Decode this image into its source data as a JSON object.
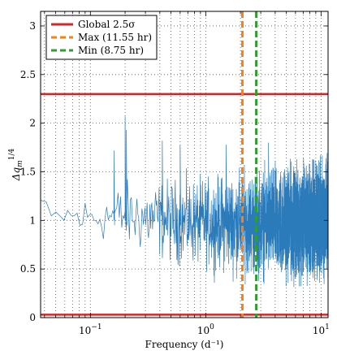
{
  "chart_data": {
    "type": "line",
    "title": "",
    "xlabel": "Frequency (d⁻¹)",
    "ylabel": "Δq",
    "ylabel_sub": "m",
    "ylabel_sup": "1/4",
    "xscale": "log",
    "xlim": [
      0.037,
      11.5
    ],
    "ylim": [
      0,
      3.15
    ],
    "grid": true,
    "legend_position": "top-left",
    "x_ticks": [
      {
        "value": 0.1,
        "base": "10",
        "exp": "−1"
      },
      {
        "value": 1,
        "base": "10",
        "exp": "0"
      },
      {
        "value": 10,
        "base": "10",
        "exp": "1"
      }
    ],
    "y_ticks": [
      {
        "value": 0,
        "label": "0"
      },
      {
        "value": 0.5,
        "label": "0.5"
      },
      {
        "value": 1,
        "label": "1"
      },
      {
        "value": 1.5,
        "label": "1.5"
      },
      {
        "value": 2,
        "label": "2"
      },
      {
        "value": 2.5,
        "label": "2.5"
      },
      {
        "value": 3,
        "label": "3"
      }
    ],
    "series": [
      {
        "color": "#2b7bba",
        "description_envelope": [
          {
            "x": 0.037,
            "low": 1.1,
            "high": 1.3
          },
          {
            "x": 0.045,
            "low": 0.75,
            "high": 1.25
          },
          {
            "x": 0.06,
            "low": 0.8,
            "high": 1.3
          },
          {
            "x": 0.08,
            "low": 0.7,
            "high": 1.35
          },
          {
            "x": 0.1,
            "low": 0.7,
            "high": 1.35
          },
          {
            "x": 0.15,
            "low": 0.65,
            "high": 1.45
          },
          {
            "x": 0.2,
            "low": 0.55,
            "high": 1.55
          },
          {
            "x": 0.3,
            "low": 0.5,
            "high": 1.55
          },
          {
            "x": 0.5,
            "low": 0.4,
            "high": 1.6
          },
          {
            "x": 1.0,
            "low": 0.35,
            "high": 1.6
          },
          {
            "x": 2.0,
            "low": 0.25,
            "high": 1.7
          },
          {
            "x": 5.0,
            "low": 0.2,
            "high": 1.75
          },
          {
            "x": 11.5,
            "low": 0.2,
            "high": 1.8
          }
        ],
        "spikes": [
          {
            "x": 0.2,
            "y": 2.07
          },
          {
            "x": 0.205,
            "y": 1.93
          },
          {
            "x": 0.16,
            "y": 1.72
          },
          {
            "x": 0.42,
            "y": 1.82
          },
          {
            "x": 0.6,
            "y": 1.78
          },
          {
            "x": 1.5,
            "y": 1.78
          },
          {
            "x": 3.5,
            "y": 1.8
          }
        ]
      }
    ],
    "hlines": [
      {
        "y": 2.3,
        "color": "#d62728",
        "style": "solid",
        "legend": "Global 2.5σ"
      },
      {
        "y": 0.03,
        "color": "#d62728",
        "style": "solid"
      }
    ],
    "vlines": [
      {
        "x": 2.078,
        "color": "#ff7f0e",
        "style": "dashed",
        "legend": "Max (11.55 hr)"
      },
      {
        "x": 2.743,
        "color": "#2ca02c",
        "style": "dashed",
        "legend": "Min (8.75 hr)"
      }
    ],
    "legend": [
      {
        "label": "Global 2.5σ",
        "color": "#d62728",
        "style": "solid"
      },
      {
        "label": "Max (11.55 hr)",
        "color": "#ff7f0e",
        "style": "dashed"
      },
      {
        "label": "Min (8.75 hr)",
        "color": "#2ca02c",
        "style": "dashed"
      }
    ]
  }
}
